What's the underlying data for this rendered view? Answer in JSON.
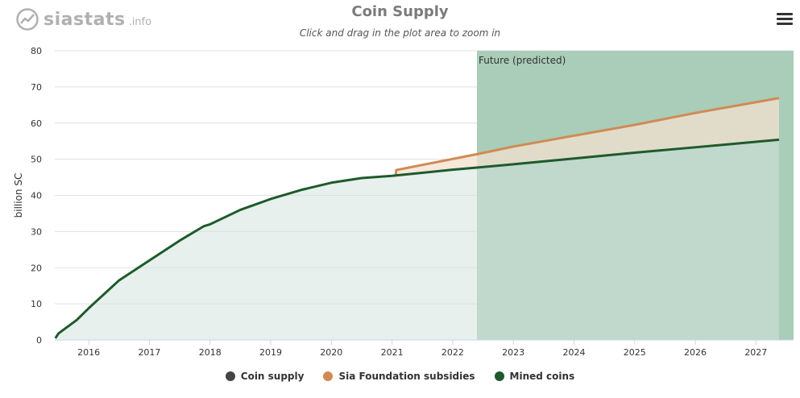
{
  "header": {
    "logo_text": "siastats",
    "logo_suffix": ".info",
    "title": "Coin Supply",
    "subtitle": "Click and drag in the plot area to zoom in"
  },
  "colors": {
    "coin_supply": "#444444",
    "subsidies": "#d08a55",
    "mined": "#1e5a2c",
    "mined_fill": "#d3e4dc",
    "subsidy_fill": "#f4e0cf",
    "future_band": "#a9cdb8",
    "grid": "#e0e0e0",
    "logo": "#b0b0b0"
  },
  "chart_data": {
    "type": "area",
    "title": "Coin Supply",
    "subtitle": "Click and drag in the plot area to zoom in",
    "xlabel": "",
    "ylabel": "billion SC",
    "xlim": [
      2015.44,
      2027.62
    ],
    "ylim": [
      0,
      80
    ],
    "ytick_values": [
      0,
      10,
      20,
      30,
      40,
      50,
      60,
      70,
      80
    ],
    "yticks": [
      "0",
      "10",
      "20",
      "30",
      "40",
      "50",
      "60",
      "70",
      "80"
    ],
    "xtick_values": [
      2016,
      2017,
      2018,
      2019,
      2020,
      2021,
      2022,
      2023,
      2024,
      2025,
      2026,
      2027
    ],
    "xticks": [
      "2016",
      "2017",
      "2018",
      "2019",
      "2020",
      "2021",
      "2022",
      "2023",
      "2024",
      "2025",
      "2026",
      "2027"
    ],
    "plot_band": {
      "from": 2022.4,
      "to": 2027.62,
      "label": "Future (predicted)"
    },
    "grid": true,
    "legend_position": "bottom",
    "series": [
      {
        "name": "Coin supply",
        "key": "coin_supply",
        "x": [
          2015.45,
          2015.5,
          2015.8,
          2016.5,
          2017.0,
          2017.5,
          2017.9,
          2018.0,
          2018.1,
          2018.5,
          2019.0,
          2019.5,
          2020.0,
          2020.5,
          2021.0,
          2021.06,
          2021.07,
          2022.4,
          2023.0,
          2024.0,
          2025.0,
          2026.0,
          2027.38
        ],
        "y": [
          0.5,
          1.8,
          5.5,
          16.5,
          22.0,
          27.5,
          31.5,
          32.0,
          32.8,
          36.0,
          39.0,
          41.5,
          43.5,
          44.8,
          45.4,
          45.5,
          47.0,
          51.4,
          53.5,
          56.5,
          59.5,
          62.8,
          66.9
        ],
        "visible": false
      },
      {
        "name": "Sia Foundation subsidies",
        "key": "subsidies",
        "x": [
          2021.06,
          2021.07,
          2022.4,
          2023.0,
          2024.0,
          2025.0,
          2026.0,
          2027.38
        ],
        "y": [
          45.5,
          47.0,
          51.4,
          53.5,
          56.5,
          59.5,
          62.8,
          66.9
        ]
      },
      {
        "name": "Mined coins",
        "key": "mined",
        "x": [
          2015.45,
          2015.5,
          2015.8,
          2016.0,
          2016.5,
          2017.0,
          2017.5,
          2017.9,
          2018.0,
          2018.1,
          2018.5,
          2019.0,
          2019.5,
          2020.0,
          2020.5,
          2021.0,
          2022.0,
          2022.4,
          2023.0,
          2024.0,
          2025.0,
          2026.0,
          2027.38
        ],
        "y": [
          0.5,
          1.8,
          5.5,
          8.8,
          16.5,
          22.0,
          27.5,
          31.5,
          32.0,
          32.8,
          36.0,
          39.0,
          41.5,
          43.5,
          44.8,
          45.4,
          47.1,
          47.7,
          48.6,
          50.2,
          51.8,
          53.3,
          55.4
        ]
      }
    ]
  },
  "legend": [
    {
      "label": "Coin supply",
      "key": "coin_supply"
    },
    {
      "label": "Sia Foundation subsidies",
      "key": "subsidies"
    },
    {
      "label": "Mined coins",
      "key": "mined"
    }
  ],
  "menu": {
    "icon": "hamburger-menu-icon"
  }
}
